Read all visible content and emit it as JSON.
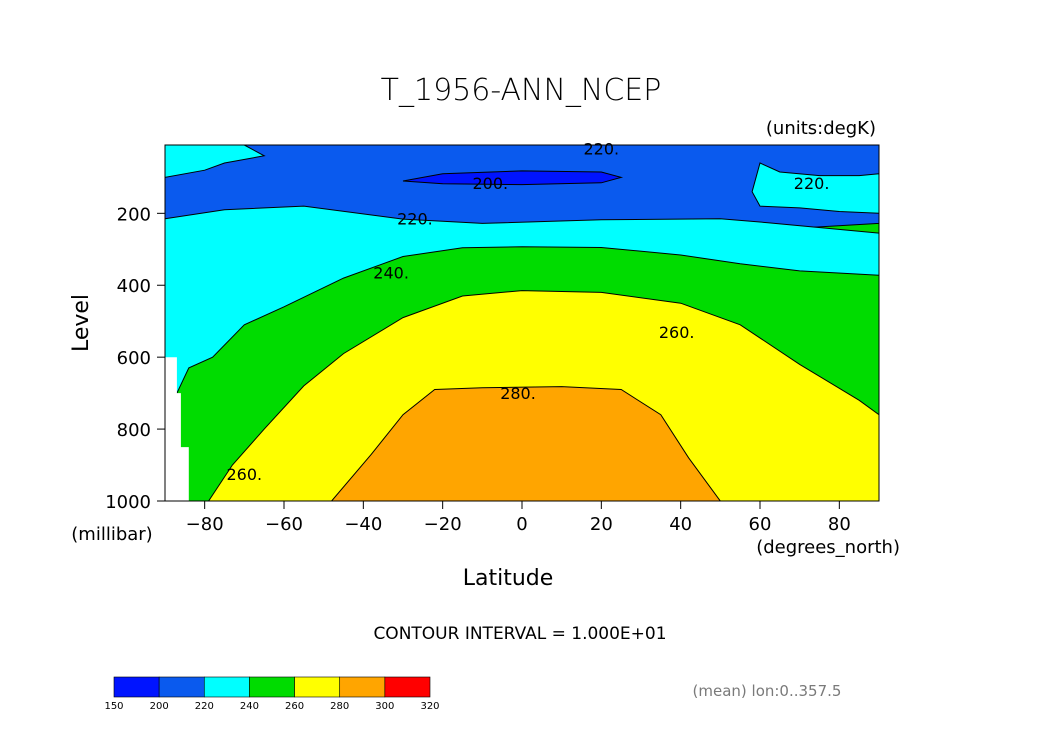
{
  "chart_data": {
    "type": "heatmap",
    "title": "T_1956-ANN_NCEP",
    "units_label": "(units:degK)",
    "xlabel": "Latitude",
    "x_units_label": "(degrees_north)",
    "ylabel": "Level",
    "y_units_label": "(millibar)",
    "xlim": [
      -90,
      90
    ],
    "ylim": [
      1000,
      10
    ],
    "x_ticks": [
      -80,
      -60,
      -40,
      -20,
      0,
      20,
      40,
      60,
      80
    ],
    "y_ticks": [
      200,
      400,
      600,
      800,
      1000
    ],
    "contour_interval_text": "CONTOUR INTERVAL = 1.000E+01",
    "footnote": "(mean) lon:0..357.5",
    "contour_labels": [
      {
        "text": "220.",
        "lat": 20,
        "level": 20
      },
      {
        "text": "200.",
        "lat": -8,
        "level": 115
      },
      {
        "text": "220.",
        "lat": 73,
        "level": 115
      },
      {
        "text": "220.",
        "lat": -27,
        "level": 215
      },
      {
        "text": "240.",
        "lat": -33,
        "level": 365
      },
      {
        "text": "260.",
        "lat": 39,
        "level": 530
      },
      {
        "text": "280.",
        "lat": -1,
        "level": 700
      },
      {
        "text": "260.",
        "lat": -70,
        "level": 925
      }
    ],
    "colorbar": {
      "boundaries": [
        150,
        200,
        220,
        240,
        260,
        280,
        300,
        320
      ],
      "colors": [
        "#0014ff",
        "#0a5aee",
        "#00ffff",
        "#00dc00",
        "#ffff00",
        "#ffa500",
        "#ff0000"
      ]
    },
    "bands": [
      {
        "range": "200-220",
        "color": "#0a5aee",
        "points": [
          [
            -90,
            10
          ],
          [
            90,
            10
          ],
          [
            90,
            228
          ],
          [
            -90,
            344
          ]
        ]
      },
      {
        "range": "220-240",
        "color": "#00ffff",
        "points": [
          [
            -90,
            215
          ],
          [
            -75,
            190
          ],
          [
            -55,
            180
          ],
          [
            -30,
            216
          ],
          [
            -10,
            228
          ],
          [
            20,
            218
          ],
          [
            50,
            215
          ],
          [
            62,
            226
          ],
          [
            90,
            255
          ],
          [
            90,
            1000
          ],
          [
            -90,
            1000
          ]
        ]
      },
      {
        "range": "240-260",
        "color": "#00dc00",
        "points": [
          [
            -90,
            1000
          ],
          [
            -87,
            700
          ],
          [
            -84,
            630
          ],
          [
            -78,
            600
          ],
          [
            -70,
            510
          ],
          [
            -60,
            460
          ],
          [
            -45,
            380
          ],
          [
            -30,
            320
          ],
          [
            -15,
            296
          ],
          [
            0,
            293
          ],
          [
            20,
            295
          ],
          [
            40,
            316
          ],
          [
            55,
            340
          ],
          [
            70,
            360
          ],
          [
            90,
            372
          ],
          [
            90,
            1000
          ]
        ]
      },
      {
        "range": "260-280",
        "color": "#ffff00",
        "points": [
          [
            -79,
            1000
          ],
          [
            -73,
            900
          ],
          [
            -65,
            800
          ],
          [
            -55,
            680
          ],
          [
            -45,
            590
          ],
          [
            -30,
            490
          ],
          [
            -15,
            430
          ],
          [
            0,
            415
          ],
          [
            20,
            420
          ],
          [
            40,
            450
          ],
          [
            55,
            510
          ],
          [
            70,
            620
          ],
          [
            85,
            720
          ],
          [
            90,
            760
          ],
          [
            90,
            1000
          ]
        ]
      },
      {
        "range": "280-300",
        "color": "#ffa500",
        "points": [
          [
            -48,
            1000
          ],
          [
            -38,
            870
          ],
          [
            -30,
            760
          ],
          [
            -22,
            690
          ],
          [
            -10,
            685
          ],
          [
            10,
            682
          ],
          [
            25,
            690
          ],
          [
            35,
            760
          ],
          [
            42,
            880
          ],
          [
            50,
            1000
          ]
        ]
      },
      {
        "range": "150-200",
        "color": "#0014ff",
        "points": [
          [
            -30,
            110
          ],
          [
            -20,
            90
          ],
          [
            0,
            82
          ],
          [
            20,
            85
          ],
          [
            25,
            100
          ],
          [
            20,
            115
          ],
          [
            0,
            120
          ],
          [
            -20,
            118
          ]
        ]
      },
      {
        "range": "220-240 (north patch)",
        "color": "#00ffff",
        "points": [
          [
            60,
            60
          ],
          [
            65,
            85
          ],
          [
            75,
            95
          ],
          [
            85,
            95
          ],
          [
            90,
            90
          ],
          [
            90,
            200
          ],
          [
            80,
            195
          ],
          [
            70,
            185
          ],
          [
            60,
            180
          ],
          [
            58,
            140
          ]
        ]
      },
      {
        "range": "220-240 (south patch)",
        "color": "#00ffff",
        "points": [
          [
            -90,
            10
          ],
          [
            -70,
            10
          ],
          [
            -65,
            40
          ],
          [
            -75,
            60
          ],
          [
            -80,
            80
          ],
          [
            -90,
            100
          ]
        ]
      }
    ]
  }
}
